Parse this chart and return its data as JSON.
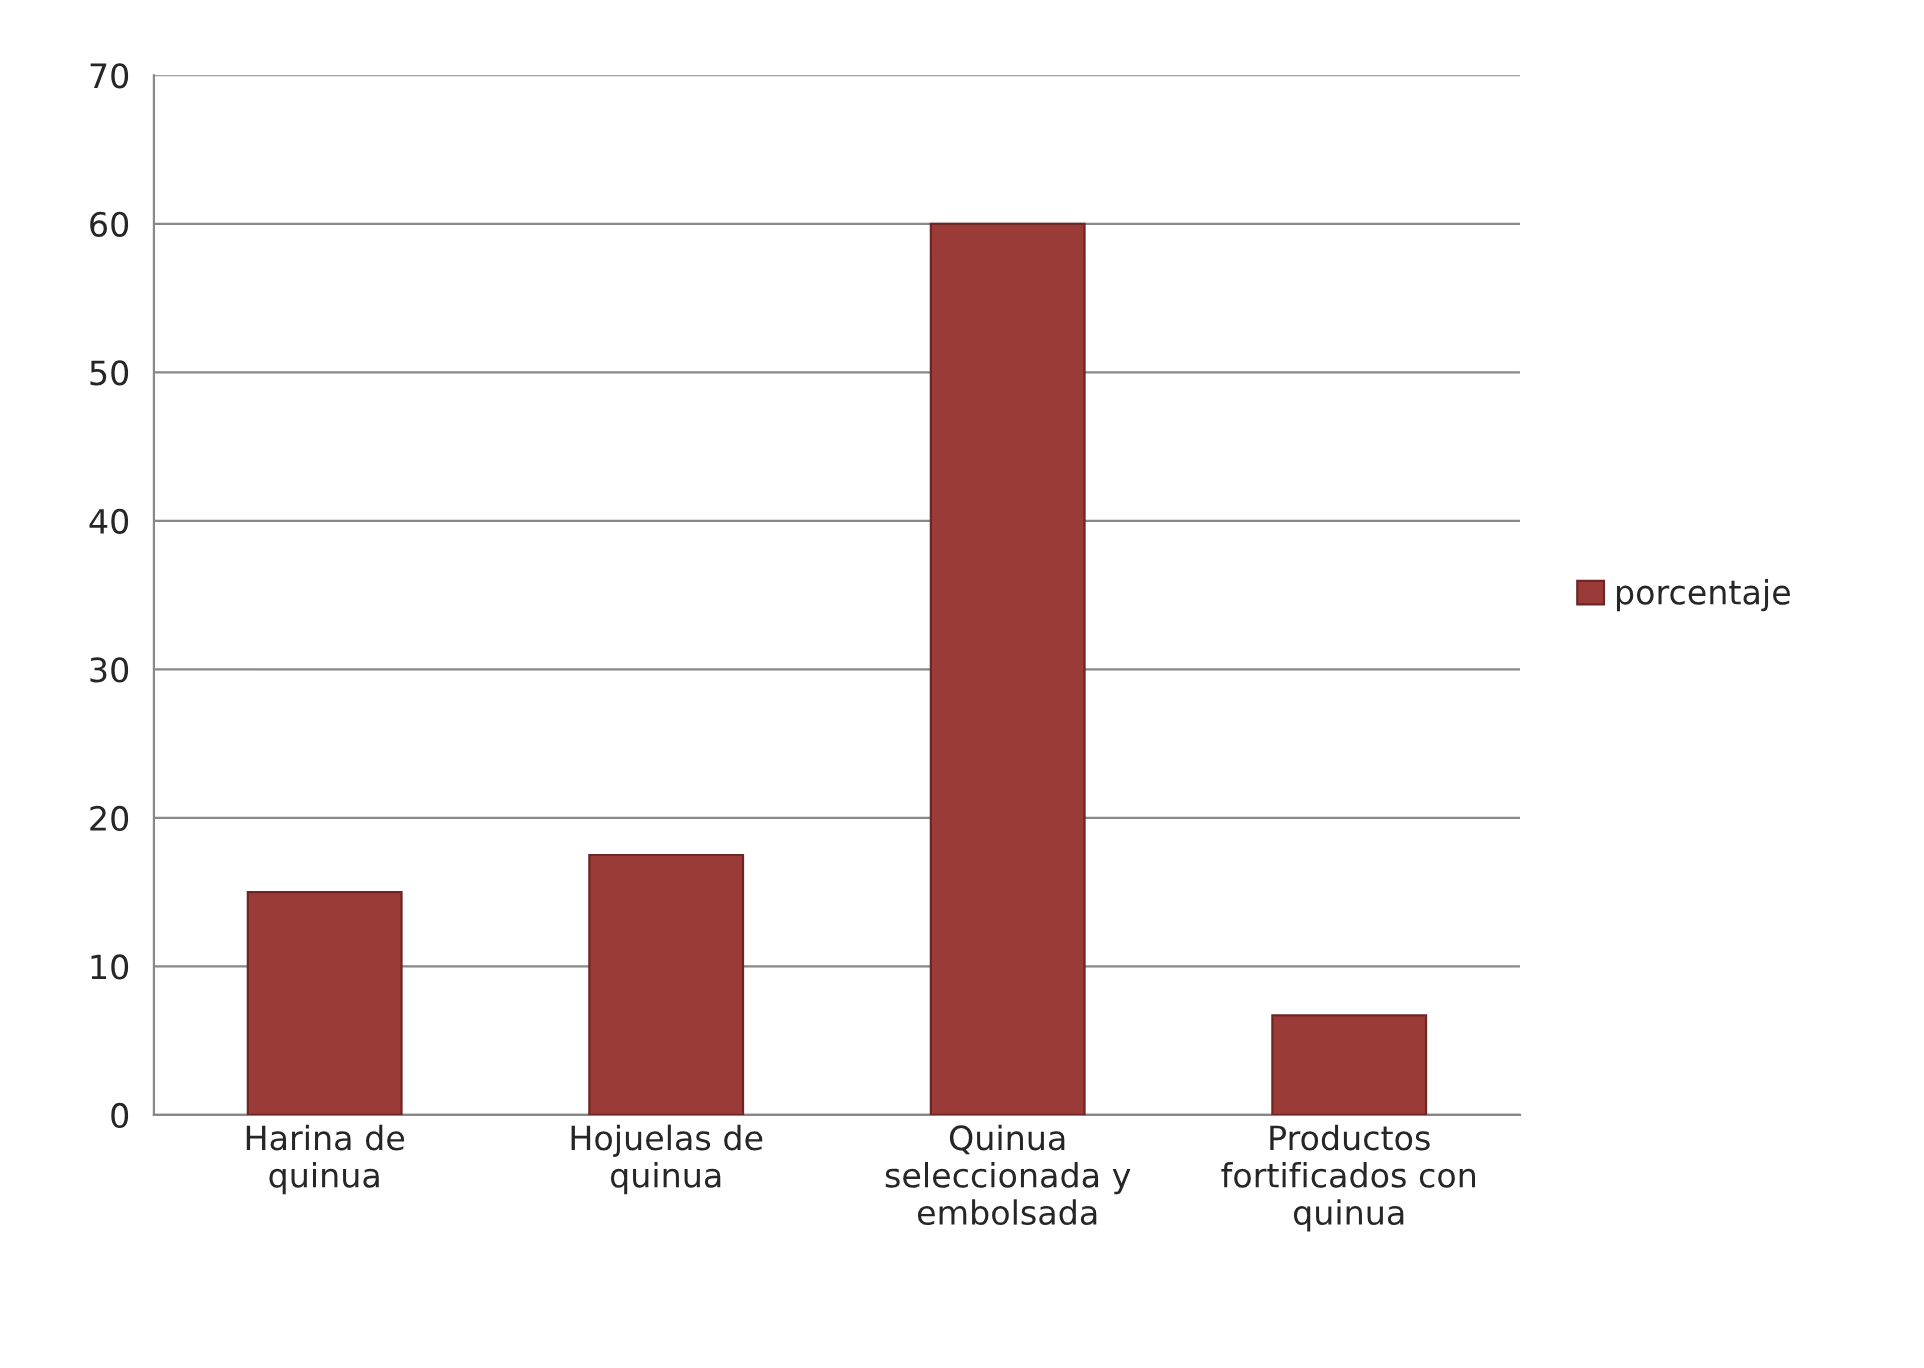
{
  "chart_data": {
    "type": "bar",
    "categories": [
      "Harina de\nquinua",
      "Hojuelas de\nquinua",
      "Quinua\nseleccionada y\nembolsada",
      "Productos\nfortificados con\nquinua"
    ],
    "series": [
      {
        "name": "porcentaje",
        "color": "#9b3b38",
        "values": [
          15,
          17.5,
          60,
          6.7
        ]
      }
    ],
    "ylim": [
      0,
      70
    ],
    "yticks": [
      0,
      10,
      20,
      30,
      40,
      50,
      60,
      70
    ],
    "grid": "y",
    "legend": "right"
  }
}
